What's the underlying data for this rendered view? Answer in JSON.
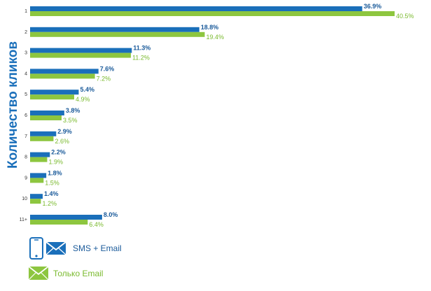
{
  "chart_data": {
    "type": "bar",
    "orientation": "horizontal",
    "ylabel": "Количество кликов",
    "categories": [
      "1",
      "2",
      "3",
      "4",
      "5",
      "6",
      "7",
      "8",
      "9",
      "10",
      "11+"
    ],
    "series": [
      {
        "name": "SMS + Email",
        "color": "#1a6fba",
        "values": [
          36.9,
          18.8,
          11.3,
          7.6,
          5.4,
          3.8,
          2.9,
          2.2,
          1.8,
          1.4,
          8.0
        ],
        "labels": [
          "36.9%",
          "18.8%",
          "11.3%",
          "7.6%",
          "5.4%",
          "3.8%",
          "2.9%",
          "2.2%",
          "1.8%",
          "1.4%",
          "8.0%"
        ]
      },
      {
        "name": "Только Email",
        "color": "#8dc63f",
        "values": [
          40.5,
          19.4,
          11.2,
          7.2,
          4.9,
          3.5,
          2.6,
          1.9,
          1.5,
          1.2,
          6.4
        ],
        "labels": [
          "40.5%",
          "19.4%",
          "11.2%",
          "7.2%",
          "4.9%",
          "3.5%",
          "2.6%",
          "1.9%",
          "1.5%",
          "1.2%",
          "6.4%"
        ]
      }
    ],
    "xlim": [
      0,
      40.5
    ],
    "grid": false,
    "legend_position": "bottom-left"
  },
  "legend": {
    "items": [
      {
        "label": "SMS + Email",
        "color": "#1a6fba",
        "icons": [
          "phone-icon",
          "envelope-icon"
        ]
      },
      {
        "label": "Только Email",
        "color": "#8dc63f",
        "icons": [
          "envelope-icon"
        ]
      }
    ]
  },
  "colors": {
    "axis_title": "#1a6fba",
    "tick_label": "#333333",
    "sms_label": "#1a5a9a",
    "email_label": "#7aba2e"
  }
}
